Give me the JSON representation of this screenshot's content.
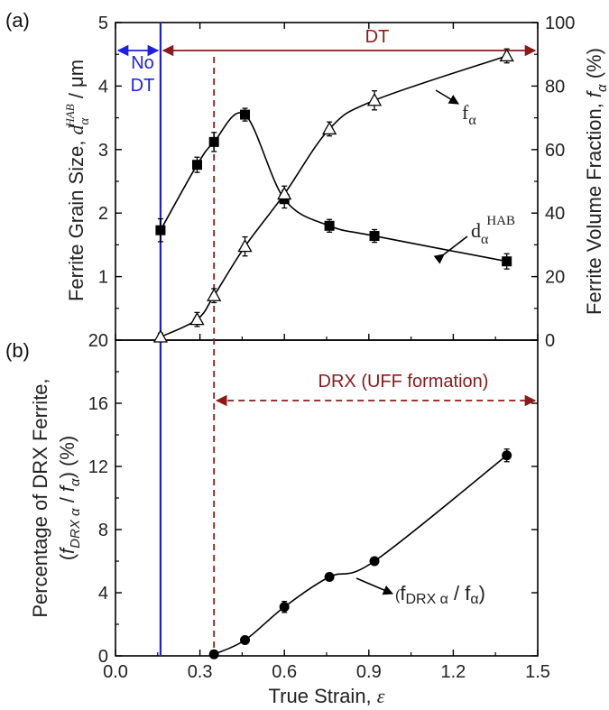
{
  "chart_data": [
    {
      "panel": "(a)",
      "type": "line",
      "x_tick_labels": [
        "0.0",
        "0.3",
        "0.6",
        "0.9",
        "1.2",
        "1.5"
      ],
      "xlim": [
        0,
        1.5
      ],
      "y_left": {
        "label_main": "Ferrite Grain Size, ",
        "label_var": "d",
        "label_sub": "α",
        "label_sup": "HAB",
        "label_unit": " / μm",
        "ylim": [
          0,
          5
        ],
        "ticks": [
          "1",
          "2",
          "3",
          "4",
          "5"
        ]
      },
      "y_right": {
        "label_main": "Ferrite Volume Fraction, ",
        "label_var": "f",
        "label_sub": "α",
        "label_unit": " (%)",
        "ylim": [
          0,
          100
        ],
        "ticks": [
          "0",
          "20",
          "40",
          "60",
          "80",
          "100"
        ]
      },
      "series": [
        {
          "name": "d_α^HAB",
          "axis": "left",
          "marker": "square",
          "x": [
            0.16,
            0.29,
            0.35,
            0.46,
            0.6,
            0.76,
            0.92,
            1.39
          ],
          "y": [
            1.73,
            2.76,
            3.12,
            3.55,
            2.22,
            1.8,
            1.64,
            1.24
          ],
          "err": [
            0.18,
            0.12,
            0.15,
            0.1,
            0.14,
            0.1,
            0.1,
            0.12
          ]
        },
        {
          "name": "f_α",
          "axis": "right",
          "marker": "triangle-open",
          "x": [
            0.16,
            0.29,
            0.35,
            0.46,
            0.6,
            0.76,
            0.92,
            1.39
          ],
          "y": [
            1,
            6.5,
            14,
            29.5,
            46,
            66.5,
            75.5,
            89.5
          ],
          "err": [
            1.2,
            2.2,
            2.2,
            3,
            2.5,
            2.2,
            3,
            2.2
          ]
        }
      ],
      "series_labels": {
        "f_main": "f",
        "f_sub": "α",
        "d_main": "d",
        "d_sub": "α",
        "d_sup": "HAB"
      },
      "annotations": {
        "no_dt_line1": "No",
        "no_dt_line2": "DT",
        "dt": "DT",
        "no_dt_strain": 0.16,
        "onset_strain": 0.35
      }
    },
    {
      "panel": "(b)",
      "type": "line",
      "xlabel_main": "True Strain, ",
      "xlabel_var": "ε",
      "x_tick_labels": [
        "0.0",
        "0.3",
        "0.6",
        "0.9",
        "1.2",
        "1.5"
      ],
      "xlim": [
        0,
        1.5
      ],
      "ylabel_line1": "Percentage of DRX Ferrite,",
      "ylabel_line2_open": "(",
      "ylabel_line2_var1": "f",
      "ylabel_line2_sub1": "DRX α",
      "ylabel_line2_slash": " / ",
      "ylabel_line2_var2": "f",
      "ylabel_line2_sub2": "α",
      "ylabel_line2_close": ") (%)",
      "ylim": [
        0,
        20
      ],
      "y_ticks": [
        "0",
        "4",
        "8",
        "12",
        "16",
        "20"
      ],
      "series": [
        {
          "name": "(f_DRX α / f_α)",
          "marker": "circle",
          "x": [
            0.35,
            0.46,
            0.6,
            0.76,
            0.92,
            1.39
          ],
          "y": [
            0.1,
            1.0,
            3.1,
            5.0,
            6.0,
            12.7
          ],
          "err": [
            0,
            0,
            0.35,
            0,
            0,
            0.4
          ]
        }
      ],
      "series_label": {
        "open": "(",
        "f1": "f",
        "sub1": "DRX α",
        "slash": " / ",
        "f2": "f",
        "sub2": "α",
        "close": ")"
      },
      "annotations": {
        "drx": "DRX (UFF formation)"
      }
    }
  ],
  "colors": {
    "no_dt": "#1f1fe0",
    "dt": "#8b1a1a",
    "series": "#000000"
  }
}
